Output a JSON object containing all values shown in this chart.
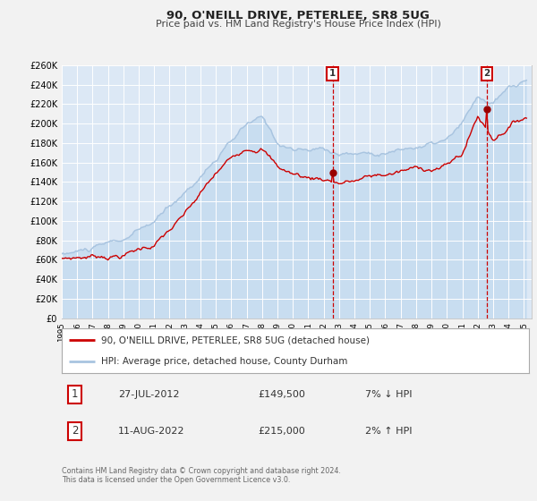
{
  "title": "90, O'NEILL DRIVE, PETERLEE, SR8 5UG",
  "subtitle": "Price paid vs. HM Land Registry's House Price Index (HPI)",
  "legend_line1": "90, O'NEILL DRIVE, PETERLEE, SR8 5UG (detached house)",
  "legend_line2": "HPI: Average price, detached house, County Durham",
  "annotation1_date": "27-JUL-2012",
  "annotation1_price": "£149,500",
  "annotation1_hpi": "7% ↓ HPI",
  "annotation2_date": "11-AUG-2022",
  "annotation2_price": "£215,000",
  "annotation2_hpi": "2% ↑ HPI",
  "footer1": "Contains HM Land Registry data © Crown copyright and database right 2024.",
  "footer2": "This data is licensed under the Open Government Licence v3.0.",
  "hpi_color": "#a8c4e0",
  "hpi_fill_color": "#c8ddf0",
  "price_color": "#cc0000",
  "fig_bg_color": "#f2f2f2",
  "plot_bg_color": "#dce8f5",
  "grid_color": "#ffffff",
  "vline_color": "#cc0000",
  "marker_color": "#990000",
  "box_edge_color": "#cc0000",
  "ylim_min": 0,
  "ylim_max": 260000,
  "sale1_yf": 2012.58,
  "sale1_value": 149500,
  "sale2_yf": 2022.62,
  "sale2_value": 215000,
  "hpi_keypoints_x": [
    1995,
    1997,
    1999,
    2001,
    2003,
    2005,
    2007,
    2008,
    2009,
    2010,
    2011,
    2012,
    2013,
    2014,
    2015,
    2016,
    2017,
    2018,
    2019,
    2020,
    2021,
    2022,
    2023,
    2024,
    2025
  ],
  "hpi_keypoints_y": [
    65000,
    70000,
    76000,
    92000,
    122000,
    158000,
    190000,
    195000,
    170000,
    164000,
    161000,
    163000,
    159000,
    159000,
    161000,
    163000,
    166000,
    169000,
    171000,
    174000,
    188000,
    213000,
    207000,
    220000,
    226000
  ],
  "red_keypoints_x": [
    1995,
    1997,
    1999,
    2001,
    2003,
    2005,
    2007,
    2008,
    2009,
    2010,
    2011,
    2012,
    2013,
    2014,
    2015,
    2016,
    2017,
    2018,
    2019,
    2020,
    2021,
    2022,
    2023,
    2024,
    2025
  ],
  "red_keypoints_y": [
    60000,
    64000,
    68000,
    80000,
    108000,
    146000,
    176000,
    180000,
    160000,
    153000,
    149000,
    149500,
    147000,
    149000,
    152000,
    154000,
    157000,
    159000,
    161000,
    164000,
    176000,
    215000,
    193000,
    208000,
    218000
  ],
  "noise_seed_hpi": 10,
  "noise_seed_red": 7,
  "noise_scale_hpi": 800,
  "noise_scale_red": 900
}
